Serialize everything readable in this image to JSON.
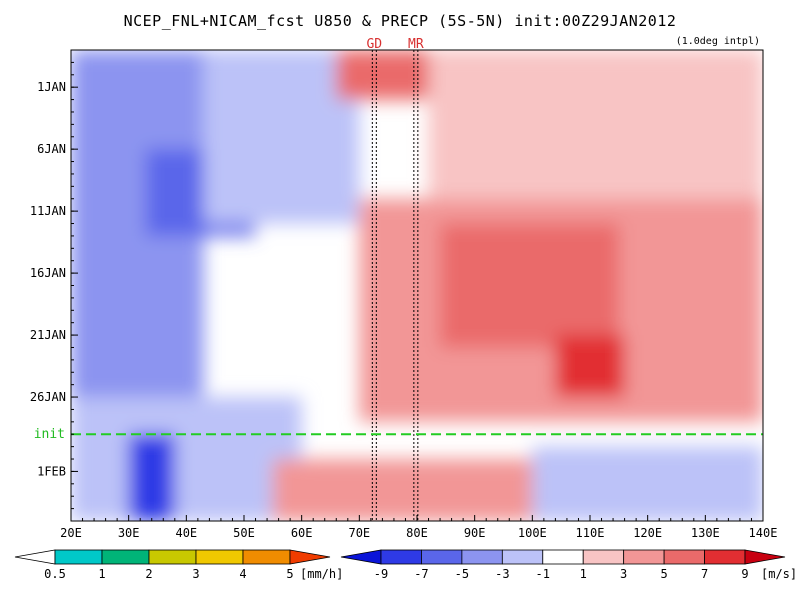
{
  "figure": {
    "title": "NCEP_FNL+NICAM_fcst U850 & PRECP (5S-5N) init:00Z29JAN2012",
    "interpolation_note": "(1.0deg intpl)"
  },
  "chart_data": {
    "type": "heatmap",
    "title": "NCEP_FNL+NICAM_fcst U850 & PRECP (5S-5N) init:00Z29JAN2012",
    "x_tick_labels": [
      "20E",
      "30E",
      "40E",
      "50E",
      "60E",
      "70E",
      "80E",
      "90E",
      "100E",
      "110E",
      "120E",
      "130E",
      "140E"
    ],
    "x_range": [
      20,
      140
    ],
    "y_tick_labels": [
      "1JAN",
      "6JAN",
      "11JAN",
      "16JAN",
      "21JAN",
      "26JAN",
      "1FEB"
    ],
    "y_tick_days": [
      1,
      6,
      11,
      16,
      21,
      26,
      32
    ],
    "y_range_days": [
      -2,
      36
    ],
    "init_label": "init",
    "init_day": 29,
    "station_markers": [
      {
        "label": "GD",
        "lon": 72.6
      },
      {
        "label": "MR",
        "lon": 79.8
      }
    ],
    "u850": {
      "name": "U850",
      "unit": "[m/s]",
      "levels": [
        "-9",
        "-7",
        "-5",
        "-3",
        "-1",
        "1",
        "3",
        "5",
        "7",
        "9"
      ],
      "colors": [
        "#0a14d8",
        "#2e3ae6",
        "#5a66ea",
        "#8c94f0",
        "#bcc2f8",
        "#ffffff",
        "#f8c4c4",
        "#f29696",
        "#ea6a6a",
        "#e22e32",
        "#c80010"
      ],
      "regions": [
        {
          "lon": [
            20,
            43
          ],
          "day": [
            -2,
            26
          ],
          "u": -4
        },
        {
          "lon": [
            33,
            52
          ],
          "day": [
            6,
            13
          ],
          "u": -6
        },
        {
          "lon": [
            20,
            60
          ],
          "day": [
            26,
            36
          ],
          "u": -3
        },
        {
          "lon": [
            30,
            38
          ],
          "day": [
            29,
            36
          ],
          "u": -8
        },
        {
          "lon": [
            43,
            70
          ],
          "day": [
            -2,
            12
          ],
          "u": -2
        },
        {
          "lon": [
            66,
            82
          ],
          "day": [
            -2,
            2
          ],
          "u": 6
        },
        {
          "lon": [
            82,
            140
          ],
          "day": [
            -2,
            10
          ],
          "u": 2
        },
        {
          "lon": [
            70,
            140
          ],
          "day": [
            10,
            28
          ],
          "u": 4
        },
        {
          "lon": [
            84,
            115
          ],
          "day": [
            12,
            22
          ],
          "u": 6
        },
        {
          "lon": [
            104,
            116
          ],
          "day": [
            21,
            26
          ],
          "u": 8
        },
        {
          "lon": [
            55,
            100
          ],
          "day": [
            31,
            36
          ],
          "u": 4
        },
        {
          "lon": [
            100,
            140
          ],
          "day": [
            30,
            36
          ],
          "u": -2
        }
      ]
    },
    "precip": {
      "name": "PRECP",
      "unit": "[mm/h]",
      "levels": [
        "0.5",
        "1",
        "2",
        "3",
        "4",
        "5"
      ],
      "colors": [
        "#ffffff",
        "#00c8c8",
        "#00b478",
        "#c8c800",
        "#f0c800",
        "#f08c00",
        "#f03c00"
      ]
    }
  }
}
